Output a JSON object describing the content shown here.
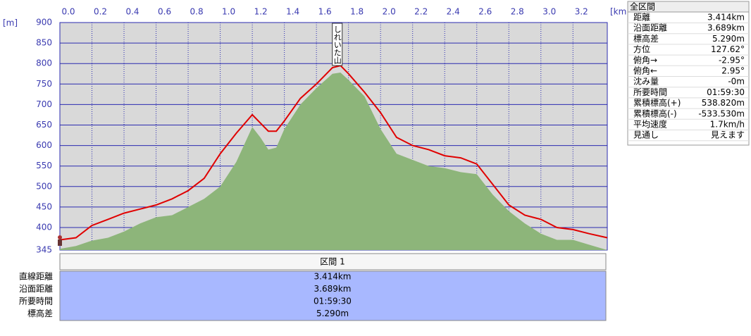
{
  "chart_data": {
    "type": "line",
    "x_unit": "[km]",
    "y_unit": "[m]",
    "x": [
      0,
      0.1,
      0.2,
      0.3,
      0.4,
      0.5,
      0.6,
      0.7,
      0.8,
      0.9,
      1.0,
      1.1,
      1.2,
      1.25,
      1.3,
      1.35,
      1.4,
      1.5,
      1.6,
      1.7,
      1.75,
      1.8,
      1.9,
      2.0,
      2.1,
      2.2,
      2.3,
      2.4,
      2.5,
      2.6,
      2.7,
      2.8,
      2.9,
      3.0,
      3.1,
      3.2,
      3.3,
      3.414
    ],
    "series": [
      {
        "type": "area",
        "color": "#8db57a",
        "values": [
          348,
          355,
          368,
          375,
          390,
          410,
          425,
          430,
          450,
          470,
          500,
          560,
          645,
          620,
          590,
          595,
          640,
          700,
          740,
          775,
          778,
          760,
          720,
          640,
          580,
          565,
          550,
          545,
          535,
          530,
          480,
          440,
          410,
          385,
          370,
          370,
          358,
          345
        ]
      },
      {
        "type": "line",
        "color": "#e00000",
        "values": [
          370,
          375,
          405,
          420,
          435,
          445,
          455,
          470,
          490,
          520,
          580,
          630,
          675,
          655,
          635,
          635,
          660,
          715,
          750,
          790,
          795,
          775,
          730,
          680,
          620,
          600,
          590,
          575,
          570,
          555,
          505,
          455,
          430,
          420,
          400,
          395,
          385,
          375
        ]
      }
    ],
    "annotations": [
      {
        "x": 1.73,
        "text": "しれいた山"
      }
    ],
    "xlim": [
      0,
      3.414
    ],
    "ylim": [
      345,
      900
    ],
    "xticks": [
      {
        "value": 0,
        "label": "0.0"
      },
      0.2,
      0.4,
      0.6,
      0.8,
      {
        "value": 1,
        "label": "1.0"
      },
      1.2,
      1.4,
      1.6,
      1.8,
      {
        "value": 2,
        "label": "2.0"
      },
      2.2,
      2.4,
      2.6,
      2.8,
      {
        "value": 3,
        "label": "3.0"
      },
      3.2
    ],
    "yticks": [
      345,
      400,
      450,
      500,
      550,
      600,
      650,
      700,
      750,
      800,
      850,
      900
    ],
    "grid": true
  },
  "summary": {
    "title": "全区間",
    "rows": [
      [
        "距離",
        "3.414km"
      ],
      [
        "沿面距離",
        "3.689km"
      ],
      [
        "標高差",
        "5.290m"
      ],
      [
        "方位",
        "127.62°"
      ],
      [
        "俯角→",
        "-2.95°"
      ],
      [
        "俯角←",
        "2.95°"
      ],
      [
        "沈み量",
        "-0m"
      ],
      [
        "所要時間",
        "01:59:30"
      ],
      [
        "累積標高(+)",
        "538.820m"
      ],
      [
        "累積標高(-)",
        "-533.530m"
      ],
      [
        "平均速度",
        "1.7km/h"
      ],
      [
        "見通し",
        "見えます"
      ]
    ]
  },
  "section_table": {
    "header": "区間 1",
    "rows": [
      [
        "直線距離",
        "3.414km"
      ],
      [
        "沿面距離",
        "3.689km"
      ],
      [
        "所要時間",
        "01:59:30"
      ],
      [
        "標高差",
        "5.290m"
      ]
    ]
  }
}
